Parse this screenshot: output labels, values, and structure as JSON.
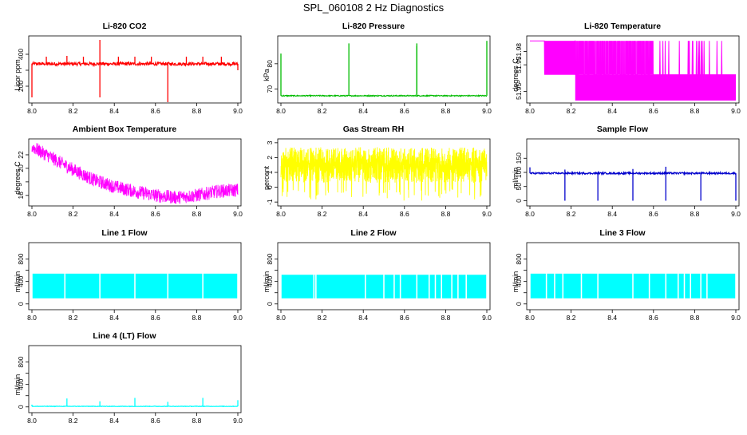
{
  "figure_title": "SPL_060108  2 Hz Diagnostics",
  "chart_data": [
    {
      "id": "p1",
      "type": "line",
      "title": "Li-820 CO2",
      "ylabel": "Licor ppm",
      "color": "#ff0000",
      "xlim": [
        8.0,
        9.0
      ],
      "ylim": [
        110,
        500
      ],
      "yticks": [
        200,
        300,
        400
      ],
      "ytick_labels": [
        "200",
        "",
        "400"
      ],
      "xticks": [
        8.0,
        8.2,
        8.4,
        8.6,
        8.8,
        9.0
      ],
      "xtick_labels": [
        "8.0",
        "8.2",
        "8.4",
        "8.6",
        "8.8",
        "9.0"
      ],
      "style": "baseline",
      "baseline": 340,
      "noise": 10,
      "spikes": [
        [
          8.0,
          130
        ],
        [
          8.33,
          130
        ],
        [
          8.33,
          490
        ],
        [
          8.66,
          100
        ],
        [
          8.07,
          385
        ],
        [
          8.17,
          390
        ],
        [
          8.25,
          385
        ],
        [
          8.42,
          385
        ],
        [
          8.5,
          385
        ],
        [
          8.58,
          385
        ],
        [
          8.75,
          385
        ],
        [
          8.83,
          385
        ],
        [
          8.92,
          385
        ],
        [
          9.0,
          300
        ]
      ]
    },
    {
      "id": "p2",
      "type": "line",
      "title": "Li-820 Pressure",
      "ylabel": "kPa",
      "color": "#00bb00",
      "xlim": [
        8.0,
        9.0
      ],
      "ylim": [
        65.5,
        90
      ],
      "yticks": [
        70,
        80
      ],
      "ytick_labels": [
        "70",
        "80"
      ],
      "xticks": [
        8.0,
        8.2,
        8.4,
        8.6,
        8.8,
        9.0
      ],
      "xtick_labels": [
        "8.0",
        "8.2",
        "8.4",
        "8.6",
        "8.8",
        "9.0"
      ],
      "style": "baseline",
      "baseline": 67.4,
      "noise": 0.2,
      "spikes": [
        [
          8.0,
          84
        ],
        [
          8.33,
          88
        ],
        [
          8.66,
          88
        ],
        [
          8.66,
          87
        ],
        [
          9.0,
          89
        ]
      ]
    },
    {
      "id": "p3",
      "type": "line",
      "title": "Li-820 Temperature",
      "ylabel": "degrees C",
      "color": "#ff00ff",
      "xlim": [
        8.0,
        9.0
      ],
      "ylim": [
        51.943,
        51.99
      ],
      "yticks": [
        51.95,
        51.97,
        51.98
      ],
      "ytick_labels": [
        "51.95",
        "51.97",
        "51.98"
      ],
      "xticks": [
        8.0,
        8.2,
        8.4,
        8.6,
        8.8,
        9.0
      ],
      "xtick_labels": [
        "8.0",
        "8.2",
        "8.4",
        "8.6",
        "8.8",
        "9.0"
      ],
      "style": "twolevel",
      "levels": [
        51.988,
        51.9625
      ],
      "switch_x": 8.22
    },
    {
      "id": "p4",
      "type": "line",
      "title": "Ambient Box Temperature",
      "ylabel": "degrees C",
      "color": "#ff00ff",
      "xlim": [
        8.0,
        9.0
      ],
      "ylim": [
        14.8,
        24
      ],
      "yticks": [
        16,
        18,
        20,
        22
      ],
      "ytick_labels": [
        "16",
        "",
        "20",
        "22"
      ],
      "xticks": [
        8.0,
        8.2,
        8.4,
        8.6,
        8.8,
        9.0
      ],
      "xtick_labels": [
        "8.0",
        "8.2",
        "8.4",
        "8.6",
        "8.8",
        "9.0"
      ],
      "style": "curve",
      "noise": 1.0,
      "curve": [
        [
          8.0,
          23.2
        ],
        [
          8.1,
          21.5
        ],
        [
          8.2,
          19.8
        ],
        [
          8.3,
          18.3
        ],
        [
          8.4,
          17.3
        ],
        [
          8.5,
          16.6
        ],
        [
          8.6,
          16.0
        ],
        [
          8.7,
          15.7
        ],
        [
          8.8,
          16.0
        ],
        [
          8.9,
          16.6
        ],
        [
          9.0,
          16.8
        ]
      ]
    },
    {
      "id": "p5",
      "type": "line",
      "title": "Gas Stream RH",
      "ylabel": "percent",
      "color": "#ffff00",
      "xlim": [
        8.0,
        9.0
      ],
      "ylim": [
        -1.1,
        3.1
      ],
      "yticks": [
        -1,
        0,
        1,
        2,
        3
      ],
      "ytick_labels": [
        "-1",
        "0",
        "1",
        "2",
        "3"
      ],
      "xticks": [
        8.0,
        8.2,
        8.4,
        8.6,
        8.8,
        9.0
      ],
      "xtick_labels": [
        "8.0",
        "8.2",
        "8.4",
        "8.6",
        "8.8",
        "9.0"
      ],
      "style": "band",
      "band": [
        0.3,
        2.7
      ],
      "extreme_low": -0.9
    },
    {
      "id": "p6",
      "type": "line",
      "title": "Sample Flow",
      "ylabel": "ml/min",
      "color": "#0000cc",
      "xlim": [
        8.0,
        9.0
      ],
      "ylim": [
        -10,
        210
      ],
      "yticks": [
        0,
        50,
        100,
        150
      ],
      "ytick_labels": [
        "0",
        "50",
        "100",
        "150"
      ],
      "xticks": [
        8.0,
        8.2,
        8.4,
        8.6,
        8.8,
        9.0
      ],
      "xtick_labels": [
        "8.0",
        "8.2",
        "8.4",
        "8.6",
        "8.8",
        "9.0"
      ],
      "style": "baseline",
      "baseline": 97,
      "noise": 3,
      "spikes": [
        [
          8.0,
          118
        ],
        [
          8.17,
          0
        ],
        [
          8.17,
          110
        ],
        [
          8.33,
          0
        ],
        [
          8.5,
          0
        ],
        [
          8.5,
          112
        ],
        [
          8.66,
          0
        ],
        [
          8.66,
          120
        ],
        [
          8.83,
          0
        ],
        [
          9.0,
          0
        ]
      ]
    },
    {
      "id": "p7",
      "type": "line",
      "title": "Line 1 Flow",
      "ylabel": "ml/min",
      "color": "#00ffff",
      "xlim": [
        8.0,
        9.0
      ],
      "ylim": [
        -60,
        1050
      ],
      "yticks": [
        0,
        200,
        400,
        600,
        800
      ],
      "ytick_labels": [
        "0",
        "",
        "400",
        "",
        "800"
      ],
      "xticks": [
        8.0,
        8.2,
        8.4,
        8.6,
        8.8,
        9.0
      ],
      "xtick_labels": [
        "8.0",
        "8.2",
        "8.4",
        "8.6",
        "8.8",
        "9.0"
      ],
      "style": "block",
      "block": [
        100,
        540
      ],
      "gaps": [
        8.16,
        8.33,
        8.5,
        8.66,
        8.83
      ]
    },
    {
      "id": "p8",
      "type": "line",
      "title": "Line 2 Flow",
      "ylabel": "ml/min",
      "color": "#00ffff",
      "xlim": [
        8.0,
        9.0
      ],
      "ylim": [
        -60,
        1050
      ],
      "yticks": [
        0,
        200,
        400,
        600,
        800
      ],
      "ytick_labels": [
        "0",
        "",
        "400",
        "",
        "800"
      ],
      "xticks": [
        8.0,
        8.2,
        8.4,
        8.6,
        8.8,
        9.0
      ],
      "xtick_labels": [
        "8.0",
        "8.2",
        "8.4",
        "8.6",
        "8.8",
        "9.0"
      ],
      "style": "block",
      "block": [
        100,
        520
      ],
      "gaps": [
        8.16,
        8.17,
        8.41,
        8.41,
        8.5,
        8.55,
        8.58,
        8.66,
        8.72,
        8.75,
        8.78,
        8.83,
        8.86,
        8.9
      ]
    },
    {
      "id": "p9",
      "type": "line",
      "title": "Line 3 Flow",
      "ylabel": "ml/min",
      "color": "#00ffff",
      "xlim": [
        8.0,
        9.0
      ],
      "ylim": [
        -60,
        1050
      ],
      "yticks": [
        0,
        200,
        400,
        600,
        800
      ],
      "ytick_labels": [
        "0",
        "",
        "400",
        "",
        "800"
      ],
      "xticks": [
        8.0,
        8.2,
        8.4,
        8.6,
        8.8,
        9.0
      ],
      "xtick_labels": [
        "8.0",
        "8.2",
        "8.4",
        "8.6",
        "8.8",
        "9.0"
      ],
      "style": "block",
      "block": [
        100,
        540
      ],
      "gaps": [
        8.08,
        8.12,
        8.16,
        8.25,
        8.33,
        8.5,
        8.58,
        8.66,
        8.72,
        8.75,
        8.78,
        8.83,
        8.86
      ]
    },
    {
      "id": "p10",
      "type": "line",
      "title": "Line 4 (LT) Flow",
      "ylabel": "ml/min",
      "color": "#00ffff",
      "xlim": [
        8.0,
        9.0
      ],
      "ylim": [
        -60,
        1050
      ],
      "yticks": [
        0,
        200,
        400,
        600,
        800
      ],
      "ytick_labels": [
        "0",
        "",
        "400",
        "",
        "800"
      ],
      "xticks": [
        8.0,
        8.2,
        8.4,
        8.6,
        8.8,
        9.0
      ],
      "xtick_labels": [
        "8.0",
        "8.2",
        "8.4",
        "8.6",
        "8.8",
        "9.0"
      ],
      "style": "baseline",
      "baseline": 10,
      "noise": 4,
      "spikes": [
        [
          8.0,
          40
        ],
        [
          8.17,
          150
        ],
        [
          8.33,
          100
        ],
        [
          8.5,
          160
        ],
        [
          8.66,
          90
        ],
        [
          8.83,
          160
        ],
        [
          9.0,
          120
        ]
      ]
    }
  ]
}
